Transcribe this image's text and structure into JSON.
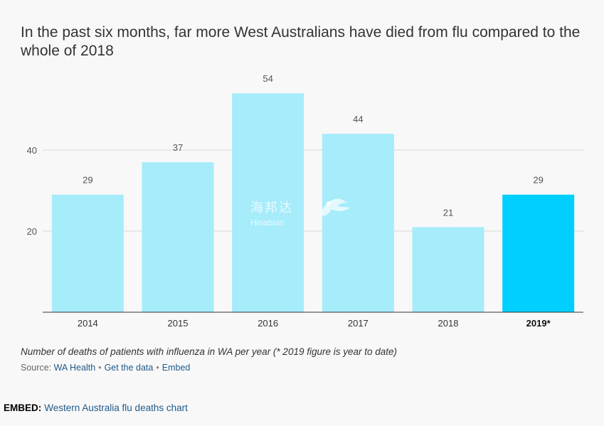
{
  "title": "In the past six months, far more West Australians have died from flu compared to the whole of 2018",
  "caption": "Number of deaths of patients with influenza in WA per year (* 2019 figure is year to date)",
  "source": {
    "label": "Source:",
    "links": [
      "WA Health",
      "Get the data",
      "Embed"
    ],
    "separator": "•"
  },
  "embed": {
    "label": "EMBED:",
    "link": "Western Australia flu deaths chart"
  },
  "watermark": {
    "cn": "海邦达",
    "en": "Hinabian"
  },
  "colors": {
    "bar": "#a6ecfb",
    "highlight_bar": "#00cfff",
    "grid": "#d9d9d9",
    "axis": "#333333"
  },
  "chart_data": {
    "type": "bar",
    "categories": [
      "2014",
      "2015",
      "2016",
      "2017",
      "2018",
      "2019*"
    ],
    "values": [
      29,
      37,
      54,
      44,
      21,
      29
    ],
    "highlight_index": 5,
    "yticks": [
      20,
      40
    ],
    "ylim": [
      0,
      60
    ],
    "grid": true,
    "title": "In the past six months, far more West Australians have died from flu compared to the whole of 2018",
    "xlabel": "",
    "ylabel": ""
  }
}
